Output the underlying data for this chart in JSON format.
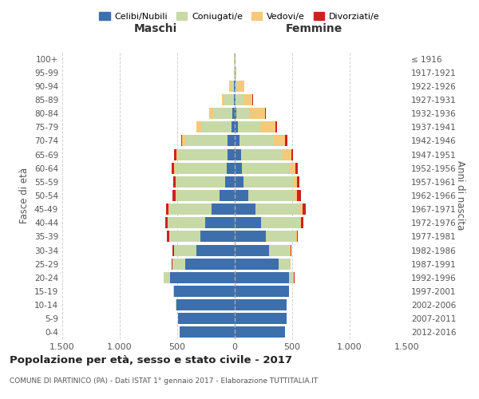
{
  "age_groups": [
    "0-4",
    "5-9",
    "10-14",
    "15-19",
    "20-24",
    "25-29",
    "30-34",
    "35-39",
    "40-44",
    "45-49",
    "50-54",
    "55-59",
    "60-64",
    "65-69",
    "70-74",
    "75-79",
    "80-84",
    "85-89",
    "90-94",
    "95-99",
    "100+"
  ],
  "birth_years": [
    "2012-2016",
    "2007-2011",
    "2002-2006",
    "1997-2001",
    "1992-1996",
    "1987-1991",
    "1982-1986",
    "1977-1981",
    "1972-1976",
    "1967-1971",
    "1962-1966",
    "1957-1961",
    "1952-1956",
    "1947-1951",
    "1942-1946",
    "1937-1941",
    "1932-1936",
    "1927-1931",
    "1922-1926",
    "1917-1921",
    "≤ 1916"
  ],
  "maschi": {
    "celibi": [
      480,
      490,
      510,
      530,
      560,
      430,
      330,
      300,
      260,
      200,
      130,
      80,
      70,
      65,
      60,
      30,
      20,
      10,
      5,
      2,
      2
    ],
    "coniugati": [
      0,
      1,
      2,
      8,
      55,
      110,
      200,
      270,
      320,
      370,
      380,
      430,
      450,
      430,
      370,
      260,
      170,
      80,
      30,
      3,
      3
    ],
    "vedovi": [
      0,
      0,
      0,
      0,
      1,
      1,
      1,
      2,
      3,
      5,
      5,
      5,
      10,
      15,
      25,
      40,
      30,
      20,
      15,
      2,
      1
    ],
    "divorziati": [
      0,
      0,
      0,
      0,
      2,
      5,
      10,
      15,
      20,
      25,
      25,
      20,
      20,
      15,
      10,
      5,
      0,
      0,
      0,
      0,
      0
    ]
  },
  "femmine": {
    "nubili": [
      440,
      450,
      450,
      470,
      470,
      380,
      300,
      270,
      230,
      180,
      120,
      75,
      65,
      55,
      40,
      25,
      15,
      10,
      5,
      2,
      2
    ],
    "coniugate": [
      0,
      0,
      1,
      5,
      45,
      100,
      180,
      260,
      330,
      390,
      400,
      430,
      410,
      360,
      290,
      200,
      120,
      65,
      25,
      3,
      2
    ],
    "vedove": [
      0,
      0,
      0,
      0,
      2,
      3,
      5,
      10,
      15,
      20,
      25,
      35,
      55,
      80,
      110,
      130,
      130,
      80,
      50,
      8,
      5
    ],
    "divorziate": [
      0,
      0,
      0,
      0,
      2,
      3,
      5,
      10,
      20,
      25,
      30,
      25,
      20,
      15,
      15,
      10,
      5,
      2,
      2,
      0,
      0
    ]
  },
  "colors": {
    "celibi_nubili": "#3d6fad",
    "coniugati": "#c8d9a8",
    "vedovi": "#f5c97a",
    "divorziati": "#cc2222"
  },
  "xlim": 1500,
  "title": "Popolazione per età, sesso e stato civile - 2017",
  "subtitle": "COMUNE DI PARTINICO (PA) - Dati ISTAT 1° gennaio 2017 - Elaborazione TUTTITALIA.IT",
  "ylabel_left": "Fasce di età",
  "ylabel_right": "Anni di nascita",
  "xlabel_left": "Maschi",
  "xlabel_right": "Femmine",
  "bg_color": "#ffffff",
  "grid_color": "#cccccc",
  "legend_labels": [
    "Celibi/Nubili",
    "Coniugati/e",
    "Vedovi/e",
    "Divorziati/e"
  ]
}
